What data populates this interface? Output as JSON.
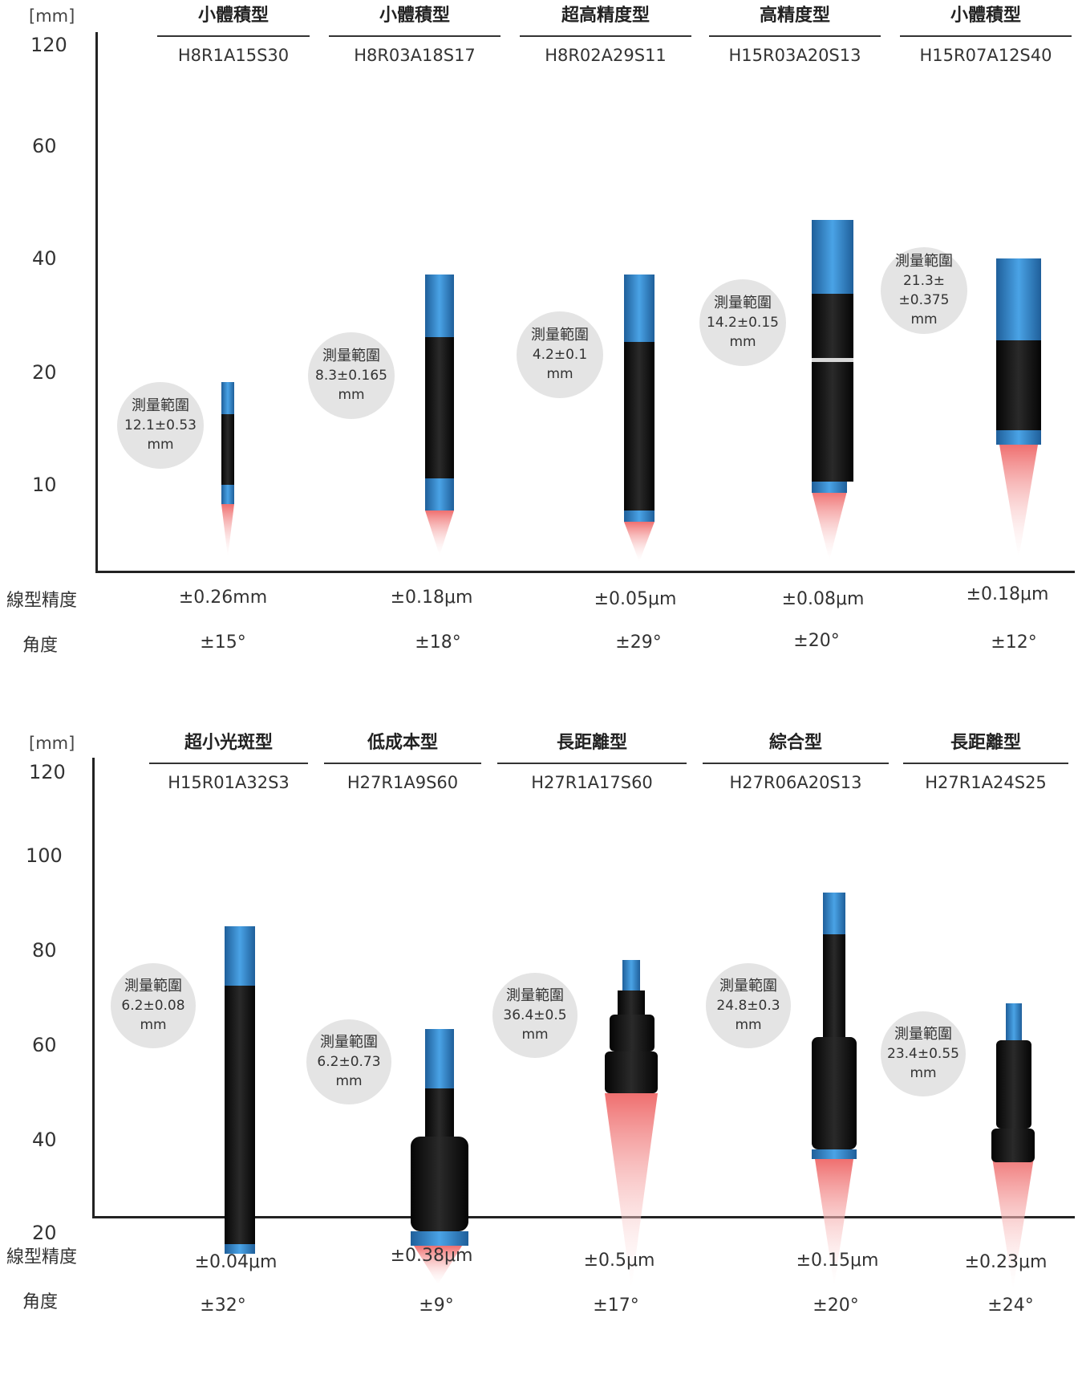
{
  "common": {
    "unit_label": "[mm]",
    "range_title": "測量範圍",
    "range_unit": "mm",
    "linearity_label": "線型精度",
    "angle_label": "角度"
  },
  "colors": {
    "blue": "#3a8fd6",
    "blue_dark": "#1f5f9a",
    "body": "#151515",
    "beam": "#f07a7a"
  },
  "top": {
    "y_ticks": [
      "120",
      "60",
      "40",
      "20",
      "10"
    ],
    "sensors": [
      {
        "category": "小體積型",
        "model": "H8R1A15S30",
        "range": "12.1±0.53",
        "linearity": "±0.26mm",
        "angle": "±15°"
      },
      {
        "category": "小體積型",
        "model": "H8R03A18S17",
        "range": "8.3±0.165",
        "linearity": "±0.18μm",
        "angle": "±18°"
      },
      {
        "category": "超高精度型",
        "model": "H8R02A29S11",
        "range": "4.2±0.1",
        "linearity": "±0.05μm",
        "angle": "±29°"
      },
      {
        "category": "高精度型",
        "model": "H15R03A20S13",
        "range": "14.2±0.15",
        "linearity": "±0.08μm",
        "angle": "±20°"
      },
      {
        "category": "小體積型",
        "model": "H15R07A12S40",
        "range": "21.3±±0.375",
        "linearity": "±0.18μm",
        "angle": "±12°"
      }
    ]
  },
  "bottom": {
    "y_ticks": [
      "120",
      "100",
      "80",
      "60",
      "40",
      "20"
    ],
    "sensors": [
      {
        "category": "超小光斑型",
        "model": "H15R01A32S3",
        "range": "6.2±0.08",
        "linearity": "±0.04μm",
        "angle": "±32°"
      },
      {
        "category": "低成本型",
        "model": "H27R1A9S60",
        "range": "6.2±0.73",
        "linearity": "±0.38μm",
        "angle": "±9°"
      },
      {
        "category": "長距離型",
        "model": "H27R1A17S60",
        "range": "36.4±0.5",
        "linearity": "±0.5μm",
        "angle": "±17°"
      },
      {
        "category": "綜合型",
        "model": "H27R06A20S13",
        "range": "24.8±0.3",
        "linearity": "±0.15μm",
        "angle": "±20°"
      },
      {
        "category": "長距離型",
        "model": "H27R1A24S25",
        "range": "23.4±0.55",
        "linearity": "±0.23μm",
        "angle": "±24°"
      }
    ]
  }
}
